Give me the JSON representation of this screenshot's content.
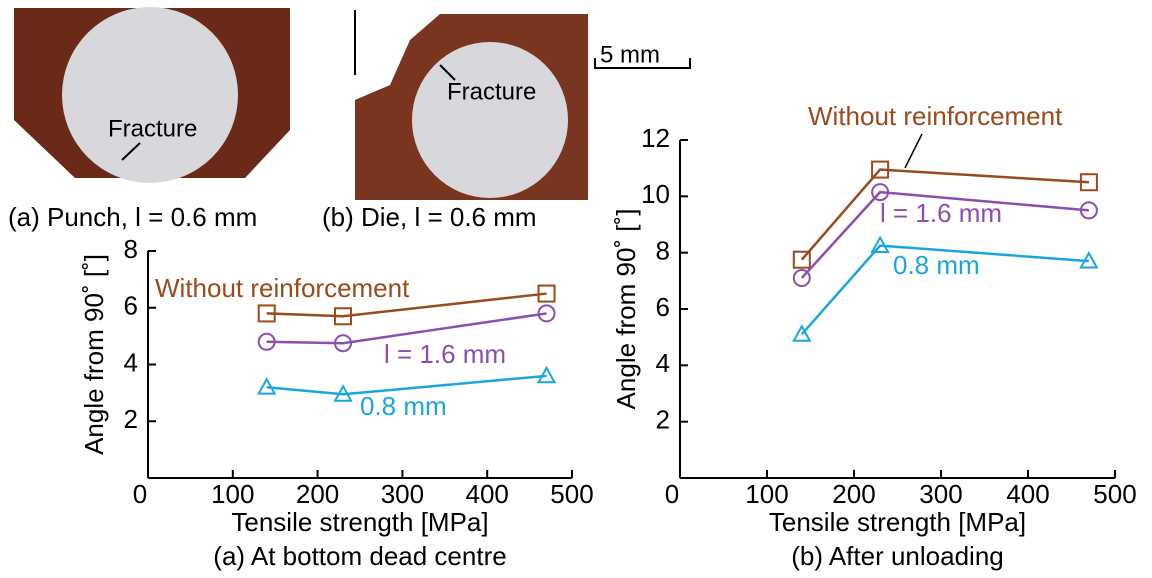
{
  "photos": {
    "punch_label": "Fracture",
    "die_label": "Fracture",
    "scale": "5 mm",
    "caption_a": "(a) Punch, l = 0.6 mm",
    "caption_b": "(b) Die, l = 0.6 mm"
  },
  "chart_data": [
    {
      "type": "line",
      "caption": "(a) At bottom dead centre",
      "xlabel": "Tensile strength [MPa]",
      "ylabel": "Angle from 90˚ [˚]",
      "xlim": [
        0,
        500
      ],
      "ylim": [
        0,
        8
      ],
      "xticks": [
        0,
        100,
        200,
        300,
        400,
        500
      ],
      "yticks": [
        2,
        4,
        6,
        8
      ],
      "x": [
        140,
        230,
        470
      ],
      "series": [
        {
          "name": "Without reinforcement",
          "color": "#9a4a1c",
          "marker": "square",
          "values": [
            5.8,
            5.7,
            6.5
          ]
        },
        {
          "name": "l = 1.6 mm",
          "color": "#8a4fb0",
          "marker": "circle",
          "values": [
            4.8,
            4.75,
            5.8
          ]
        },
        {
          "name": "0.8 mm",
          "color": "#1aa6dc",
          "marker": "triangle",
          "values": [
            3.2,
            2.95,
            3.6
          ]
        }
      ]
    },
    {
      "type": "line",
      "caption": "(b) After unloading",
      "xlabel": "Tensile strength [MPa]",
      "ylabel": "Angle from 90˚ [˚]",
      "xlim": [
        0,
        500
      ],
      "ylim": [
        0,
        12
      ],
      "xticks": [
        0,
        100,
        200,
        300,
        400,
        500
      ],
      "yticks": [
        2,
        4,
        6,
        8,
        10,
        12
      ],
      "x": [
        140,
        230,
        470
      ],
      "series": [
        {
          "name": "Without reinforcement",
          "color": "#9a4a1c",
          "marker": "square",
          "values": [
            7.75,
            10.95,
            10.5
          ]
        },
        {
          "name": "l = 1.6 mm",
          "color": "#8a4fb0",
          "marker": "circle",
          "values": [
            7.1,
            10.15,
            9.5
          ]
        },
        {
          "name": "0.8 mm",
          "color": "#1aa6dc",
          "marker": "triangle",
          "values": [
            5.1,
            8.25,
            7.7
          ]
        }
      ]
    }
  ]
}
